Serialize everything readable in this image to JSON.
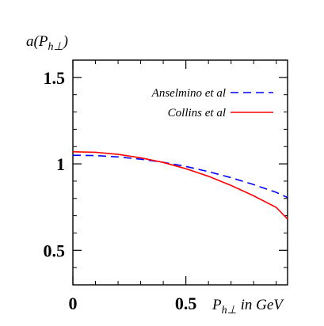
{
  "chart_data": {
    "type": "line",
    "xlabel": "P",
    "xlabel_sub": "h⊥",
    "xlabel_suffix": " in GeV",
    "ylabel": "a(P",
    "ylabel_sub": "h⊥",
    "ylabel_suffix": ")",
    "xlim": [
      0,
      0.95
    ],
    "ylim": [
      0.3,
      1.6
    ],
    "xticks": [
      "0",
      "0.5"
    ],
    "xtick_values": [
      0,
      0.5
    ],
    "yticks": [
      "0.5",
      "1",
      "1.5"
    ],
    "ytick_values": [
      0.5,
      1.0,
      1.5
    ],
    "legend_position": "top-right",
    "grid": false,
    "series": [
      {
        "name": "Anselmino et al",
        "style": "dashed",
        "color": "#0000ff",
        "x": [
          0,
          0.1,
          0.2,
          0.3,
          0.4,
          0.5,
          0.6,
          0.7,
          0.8,
          0.9,
          0.95
        ],
        "y": [
          1.05,
          1.048,
          1.04,
          1.027,
          1.009,
          0.985,
          0.955,
          0.92,
          0.88,
          0.835,
          0.805
        ]
      },
      {
        "name": "Collins et al",
        "style": "solid",
        "color": "#ff0000",
        "x": [
          0,
          0.1,
          0.2,
          0.3,
          0.4,
          0.5,
          0.6,
          0.7,
          0.8,
          0.9,
          0.95
        ],
        "y": [
          1.07,
          1.067,
          1.055,
          1.035,
          1.008,
          0.972,
          0.928,
          0.875,
          0.815,
          0.748,
          0.68
        ]
      }
    ]
  }
}
